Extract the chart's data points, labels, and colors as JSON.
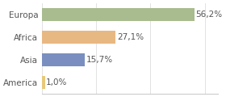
{
  "categories": [
    "America",
    "Asia",
    "Africa",
    "Europa"
  ],
  "values": [
    1.0,
    15.7,
    27.1,
    56.2
  ],
  "labels": [
    "1,0%",
    "15,7%",
    "27,1%",
    "56,2%"
  ],
  "bar_colors": [
    "#e8c97a",
    "#7a8fc0",
    "#e8b882",
    "#a8bc8f"
  ],
  "background_color": "#ffffff",
  "xlim": [
    0,
    65
  ],
  "bar_height": 0.55,
  "label_fontsize": 7.5,
  "category_fontsize": 7.5
}
